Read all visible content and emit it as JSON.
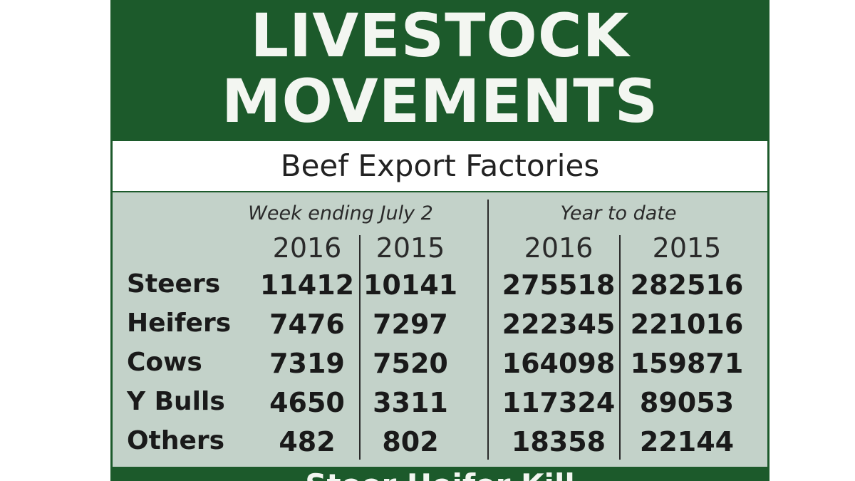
{
  "title_line1": "LIVESTOCK",
  "title_line2": "MOVEMENTS",
  "subtitle": "Beef Export Factories",
  "groups": {
    "week": "Week ending July 2",
    "ytd": "Year to date"
  },
  "years": [
    "2016",
    "2015",
    "2016",
    "2015"
  ],
  "rows": [
    {
      "label": "Steers",
      "values": [
        "11412",
        "10141",
        "275518",
        "282516"
      ]
    },
    {
      "label": "Heifers",
      "values": [
        "7476",
        "7297",
        "222345",
        "221016"
      ]
    },
    {
      "label": "Cows",
      "values": [
        "7319",
        "7520",
        "164098",
        "159871"
      ]
    },
    {
      "label": "Y Bulls",
      "values": [
        "4650",
        "3311",
        "117324",
        "89053"
      ]
    },
    {
      "label": "Others",
      "values": [
        "482",
        "802",
        "18358",
        "22144"
      ]
    }
  ],
  "bottom_caption": "Steer Heifer Kill",
  "colors": {
    "green": "#1c5a2b",
    "table_bg": "#c3d2c9"
  }
}
